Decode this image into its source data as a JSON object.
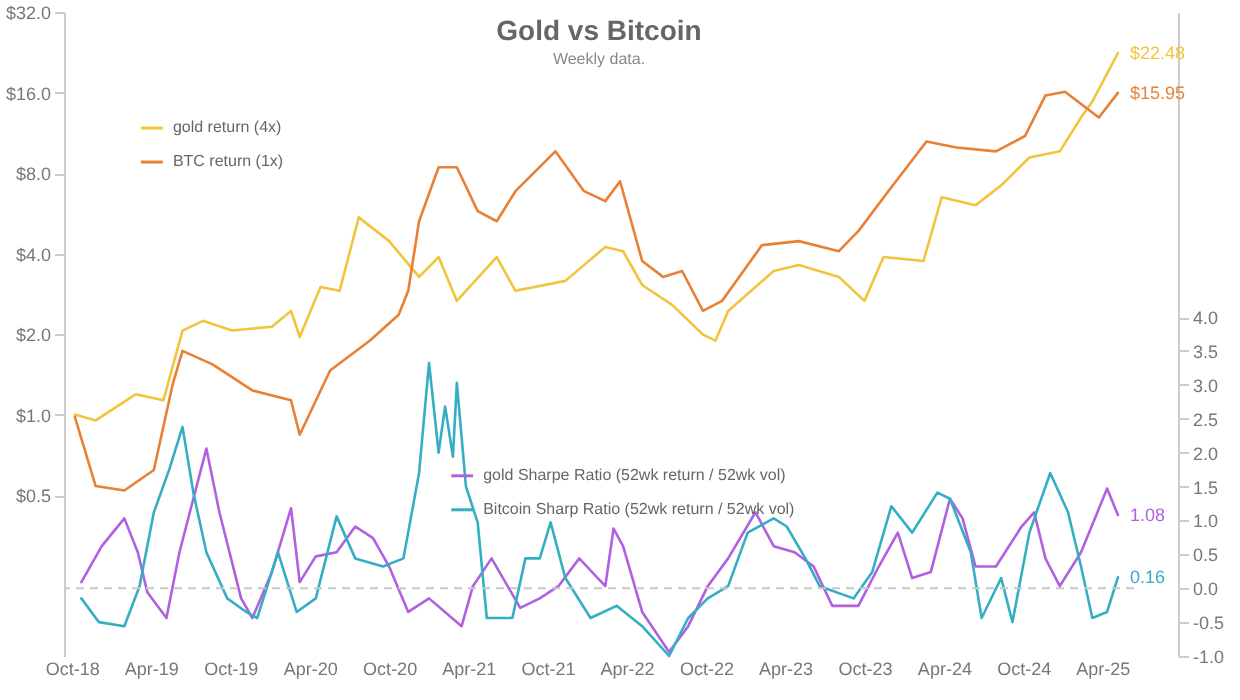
{
  "chart_data": {
    "type": "line",
    "title": "Gold vs Bitcoin",
    "subtitle": "Weekly data.",
    "log": "y",
    "legend": "top left",
    "line_style": "solid",
    "xlim": [
      "2018-09-13",
      "2025-06-13"
    ],
    "xticks": [
      {
        "value": "2018-10-01",
        "label": "Oct-18"
      },
      {
        "value": "2019-04-01",
        "label": "Apr-19"
      },
      {
        "value": "2019-10-01",
        "label": "Oct-19"
      },
      {
        "value": "2020-04-01",
        "label": "Apr-20"
      },
      {
        "value": "2020-10-01",
        "label": "Oct-20"
      },
      {
        "value": "2021-04-01",
        "label": "Apr-21"
      },
      {
        "value": "2021-10-01",
        "label": "Oct-21"
      },
      {
        "value": "2022-04-01",
        "label": "Apr-22"
      },
      {
        "value": "2022-10-01",
        "label": "Oct-22"
      },
      {
        "value": "2023-04-01",
        "label": "Apr-23"
      },
      {
        "value": "2023-10-01",
        "label": "Oct-23"
      },
      {
        "value": "2024-04-01",
        "label": "Apr-24"
      },
      {
        "value": "2024-10-01",
        "label": "Oct-24"
      },
      {
        "value": "2025-04-01",
        "label": "Apr-25"
      }
    ],
    "ylim": [
      0.125,
      32
    ],
    "yticks": [
      {
        "value": 0.5,
        "label": "$0.5"
      },
      {
        "value": 1,
        "label": "$1.0"
      },
      {
        "value": 2,
        "label": "$2.0"
      },
      {
        "value": 4,
        "label": "$4.0"
      },
      {
        "value": 8,
        "label": "$8.0"
      },
      {
        "value": 16,
        "label": "$16.0"
      },
      {
        "value": 32,
        "label": "$32.0"
      }
    ],
    "y2lim": [
      -1,
      8.5
    ],
    "y2ticks": [
      {
        "value": -1,
        "label": "-1.0"
      },
      {
        "value": -0.5,
        "label": "-0.5"
      },
      {
        "value": 0,
        "label": "0.0"
      },
      {
        "value": 0.5,
        "label": "0.5"
      },
      {
        "value": 1,
        "label": "1.0"
      },
      {
        "value": 1.5,
        "label": "1.5"
      },
      {
        "value": 2,
        "label": "2.0"
      },
      {
        "value": 2.5,
        "label": "2.5"
      },
      {
        "value": 3,
        "label": "3.0"
      },
      {
        "value": 3.5,
        "label": "3.5"
      },
      {
        "value": 4,
        "label": "4.0"
      }
    ],
    "ref_lines": [
      {
        "axis": "y2",
        "value": 0,
        "color": "#c8c8c8",
        "line_style": "dashed"
      }
    ],
    "series": [
      {
        "name": "gold return (4x)",
        "color": "#f2c43c",
        "x": [
          "2018-10-08",
          "2018-11-25",
          "2019-02-25",
          "2019-04-30",
          "2019-06-13",
          "2019-07-30",
          "2019-10-05",
          "2020-01-05",
          "2020-02-18",
          "2020-03-09",
          "2020-04-26",
          "2020-06-09",
          "2020-07-23",
          "2020-10-01",
          "2020-12-09",
          "2021-01-23",
          "2021-03-06",
          "2021-06-06",
          "2021-07-19",
          "2021-11-11",
          "2022-02-11",
          "2022-03-24",
          "2022-05-07",
          "2022-07-15",
          "2022-09-24",
          "2022-10-23",
          "2022-11-21",
          "2023-03-06",
          "2023-05-03",
          "2023-08-03",
          "2023-10-01",
          "2023-11-14",
          "2024-02-14",
          "2024-03-27",
          "2024-06-13",
          "2024-08-11",
          "2024-10-15",
          "2024-12-24",
          "2025-02-11",
          "2025-03-09",
          "2025-05-07"
        ],
        "values": [
          1.0,
          0.95,
          1.19,
          1.13,
          2.06,
          2.24,
          2.06,
          2.13,
          2.44,
          1.95,
          3.0,
          2.9,
          5.46,
          4.45,
          3.27,
          3.88,
          2.66,
          3.88,
          2.9,
          3.16,
          4.23,
          4.08,
          3.05,
          2.57,
          1.99,
          1.89,
          2.44,
          3.44,
          3.62,
          3.27,
          2.66,
          3.88,
          3.75,
          6.49,
          6.06,
          7.19,
          9.14,
          9.64,
          12.9,
          14.8,
          22.48
        ],
        "value_labels": [
          null,
          null,
          null,
          null,
          null,
          null,
          null,
          null,
          null,
          null,
          null,
          null,
          null,
          null,
          null,
          null,
          null,
          null,
          null,
          null,
          null,
          null,
          null,
          null,
          null,
          null,
          null,
          null,
          null,
          null,
          null,
          null,
          null,
          null,
          null,
          null,
          null,
          null,
          null,
          null,
          "$22.48"
        ]
      },
      {
        "name": "BTC return (1x)",
        "color": "#e88035",
        "x": [
          "2018-10-08",
          "2018-11-25",
          "2019-01-30",
          "2019-04-08",
          "2019-05-21",
          "2019-06-13",
          "2019-08-21",
          "2019-11-21",
          "2020-02-18",
          "2020-03-09",
          "2020-05-18",
          "2020-08-18",
          "2020-10-23",
          "2020-11-14",
          "2020-12-09",
          "2021-01-23",
          "2021-03-06",
          "2021-04-23",
          "2021-06-06",
          "2021-07-19",
          "2021-10-19",
          "2021-12-24",
          "2022-02-11",
          "2022-03-17",
          "2022-05-07",
          "2022-06-24",
          "2022-08-07",
          "2022-09-24",
          "2022-11-07",
          "2023-02-07",
          "2023-05-03",
          "2023-08-03",
          "2023-09-17",
          "2023-11-25",
          "2024-02-21",
          "2024-04-30",
          "2024-07-30",
          "2024-10-05",
          "2024-11-21",
          "2025-01-05",
          "2025-03-24",
          "2025-05-07"
        ],
        "values": [
          0.98,
          0.54,
          0.52,
          0.62,
          1.29,
          1.73,
          1.54,
          1.23,
          1.13,
          0.84,
          1.46,
          1.89,
          2.36,
          2.9,
          5.28,
          8.41,
          8.41,
          5.76,
          5.28,
          6.84,
          9.64,
          6.84,
          6.28,
          7.45,
          3.75,
          3.27,
          3.44,
          2.44,
          2.66,
          4.3,
          4.45,
          4.08,
          4.85,
          6.84,
          10.5,
          9.97,
          9.64,
          11.0,
          15.6,
          16.1,
          12.9,
          15.95
        ],
        "value_labels": [
          null,
          null,
          null,
          null,
          null,
          null,
          null,
          null,
          null,
          null,
          null,
          null,
          null,
          null,
          null,
          null,
          null,
          null,
          null,
          null,
          null,
          null,
          null,
          null,
          null,
          null,
          null,
          null,
          null,
          null,
          null,
          null,
          null,
          null,
          null,
          null,
          null,
          null,
          null,
          null,
          null,
          "$15.95"
        ]
      },
      {
        "name": "gold Sharpe Ratio (52wk return / 52wk vol)",
        "color": "#b060e0",
        "axis": "y2",
        "x": [
          "2018-10-23",
          "2018-12-09",
          "2019-01-30",
          "2019-03-02",
          "2019-03-24",
          "2019-05-07",
          "2019-06-06",
          "2019-07-08",
          "2019-08-07",
          "2019-09-06",
          "2019-10-26",
          "2019-11-21",
          "2020-01-05",
          "2020-02-18",
          "2020-03-09",
          "2020-04-15",
          "2020-06-02",
          "2020-07-15",
          "2020-08-25",
          "2020-10-01",
          "2020-11-14",
          "2021-01-01",
          "2021-03-17",
          "2021-04-12",
          "2021-05-25",
          "2021-07-30",
          "2021-09-13",
          "2021-10-26",
          "2021-12-13",
          "2022-02-11",
          "2022-03-02",
          "2022-03-24",
          "2022-05-07",
          "2022-07-08",
          "2022-08-21",
          "2022-10-05",
          "2022-11-21",
          "2023-01-23",
          "2023-03-06",
          "2023-04-23",
          "2023-06-06",
          "2023-07-19",
          "2023-09-17",
          "2023-11-03",
          "2023-12-17",
          "2024-01-19",
          "2024-03-02",
          "2024-04-15",
          "2024-05-14",
          "2024-06-13",
          "2024-07-30",
          "2024-09-27",
          "2024-10-26",
          "2024-11-21",
          "2024-12-24",
          "2025-02-11",
          "2025-04-12",
          "2025-05-07"
        ],
        "values": [
          0.09,
          0.62,
          1.03,
          0.53,
          -0.06,
          -0.44,
          0.53,
          1.32,
          2.06,
          1.12,
          -0.15,
          -0.44,
          0.24,
          1.18,
          0.09,
          0.47,
          0.53,
          0.91,
          0.74,
          0.32,
          -0.35,
          -0.15,
          -0.56,
          0.03,
          0.44,
          -0.29,
          -0.15,
          0.03,
          0.44,
          0.03,
          0.88,
          0.62,
          -0.35,
          -0.94,
          -0.56,
          0.03,
          0.44,
          1.12,
          0.62,
          0.53,
          0.32,
          -0.26,
          -0.26,
          0.32,
          0.82,
          0.15,
          0.24,
          1.32,
          1.03,
          0.32,
          0.32,
          0.91,
          1.12,
          0.44,
          0.03,
          0.53,
          1.47,
          1.08
        ],
        "value_labels": [
          null,
          null,
          null,
          null,
          null,
          null,
          null,
          null,
          null,
          null,
          null,
          null,
          null,
          null,
          null,
          null,
          null,
          null,
          null,
          null,
          null,
          null,
          null,
          null,
          null,
          null,
          null,
          null,
          null,
          null,
          null,
          null,
          null,
          null,
          null,
          null,
          null,
          null,
          null,
          null,
          null,
          null,
          null,
          null,
          null,
          null,
          null,
          null,
          null,
          null,
          null,
          null,
          null,
          null,
          null,
          null,
          null,
          "1.08"
        ]
      },
      {
        "name": "Bitcoin Sharp Ratio (52wk return / 52wk vol)",
        "color": "#35aec4",
        "axis": "y2",
        "x": [
          "2018-10-23",
          "2018-12-02",
          "2019-01-30",
          "2019-03-06",
          "2019-04-08",
          "2019-05-14",
          "2019-06-13",
          "2019-07-08",
          "2019-08-07",
          "2019-09-24",
          "2019-11-07",
          "2019-12-02",
          "2020-01-19",
          "2020-03-02",
          "2020-04-15",
          "2020-06-02",
          "2020-07-15",
          "2020-09-17",
          "2020-11-03",
          "2020-12-09",
          "2021-01-01",
          "2021-01-23",
          "2021-02-07",
          "2021-02-25",
          "2021-03-06",
          "2021-03-27",
          "2021-04-23",
          "2021-05-14",
          "2021-07-12",
          "2021-08-11",
          "2021-09-13",
          "2021-10-08",
          "2021-11-11",
          "2022-01-08",
          "2022-03-09",
          "2022-05-07",
          "2022-07-08",
          "2022-08-21",
          "2022-10-05",
          "2022-11-21",
          "2023-01-05",
          "2023-03-06",
          "2023-04-05",
          "2023-05-18",
          "2023-06-20",
          "2023-09-06",
          "2023-10-19",
          "2023-12-02",
          "2024-01-19",
          "2024-03-17",
          "2024-04-15",
          "2024-06-02",
          "2024-06-27",
          "2024-08-11",
          "2024-09-06",
          "2024-10-15",
          "2024-12-02",
          "2025-01-12",
          "2025-02-11",
          "2025-03-09",
          "2025-04-12",
          "2025-05-07"
        ],
        "values": [
          -0.15,
          -0.5,
          -0.56,
          0.03,
          1.12,
          1.76,
          2.38,
          1.41,
          0.53,
          -0.15,
          -0.35,
          -0.44,
          0.53,
          -0.35,
          -0.15,
          1.06,
          0.44,
          0.32,
          0.44,
          1.7,
          3.32,
          2.0,
          2.68,
          1.94,
          3.03,
          1.5,
          0.97,
          -0.44,
          -0.44,
          0.44,
          0.44,
          0.97,
          0.15,
          -0.44,
          -0.26,
          -0.56,
          -1.0,
          -0.44,
          -0.15,
          0.03,
          0.82,
          1.03,
          0.91,
          0.44,
          0.03,
          -0.15,
          0.24,
          1.21,
          0.82,
          1.41,
          1.32,
          0.53,
          -0.44,
          0.15,
          -0.5,
          0.82,
          1.7,
          1.12,
          0.32,
          -0.44,
          -0.35,
          0.16
        ],
        "value_labels": [
          null,
          null,
          null,
          null,
          null,
          null,
          null,
          null,
          null,
          null,
          null,
          null,
          null,
          null,
          null,
          null,
          null,
          null,
          null,
          null,
          null,
          null,
          null,
          null,
          null,
          null,
          null,
          null,
          null,
          null,
          null,
          null,
          null,
          null,
          null,
          null,
          null,
          null,
          null,
          null,
          null,
          null,
          null,
          null,
          null,
          null,
          null,
          null,
          null,
          null,
          null,
          null,
          null,
          null,
          null,
          null,
          null,
          null,
          null,
          null,
          null,
          "0.16"
        ]
      }
    ]
  }
}
